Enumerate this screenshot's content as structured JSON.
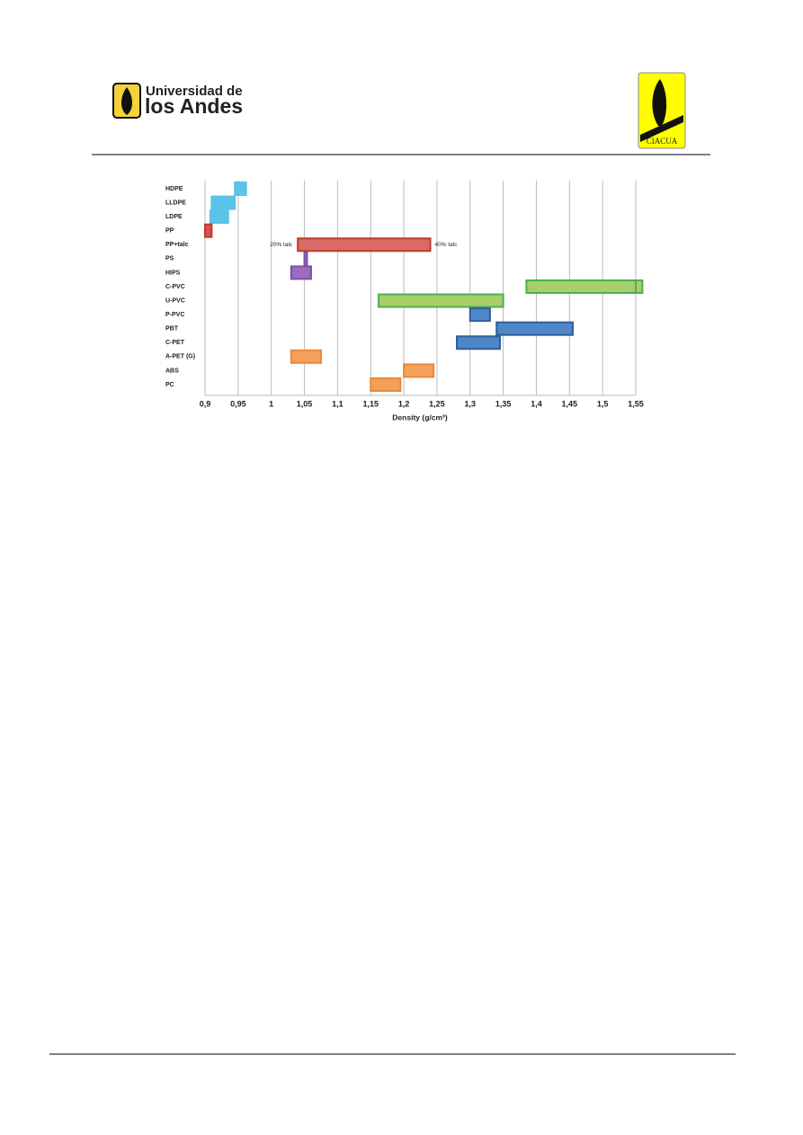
{
  "header": {
    "logo_line1": "Universidad de",
    "logo_line2": "los Andes",
    "right_logo": "CIACUA"
  },
  "chart_data": {
    "type": "range",
    "categories": [
      "HDPE",
      "LLDPE",
      "LDPE",
      "PP",
      "PP+talc",
      "PS",
      "HIPS",
      "C-PVC",
      "U-PVC",
      "P-PVC",
      "PBT",
      "C-PET",
      "A-PET (G)",
      "ABS",
      "PC"
    ],
    "ranges": [
      [
        [
          0.945,
          0.962
        ]
      ],
      [
        [
          0.91,
          0.945
        ]
      ],
      [
        [
          0.908,
          0.935
        ]
      ],
      [
        [
          0.9,
          0.91
        ]
      ],
      [
        [
          1.04,
          1.24
        ]
      ],
      [
        [
          1.05,
          1.054
        ]
      ],
      [
        [
          1.03,
          1.06
        ]
      ],
      [
        [
          1.54,
          1.56
        ],
        [
          1.385,
          1.55
        ]
      ],
      [
        [
          1.162,
          1.35
        ]
      ],
      [
        [
          1.3,
          1.33
        ]
      ],
      [
        [
          1.34,
          1.455
        ]
      ],
      [
        [
          1.28,
          1.345
        ]
      ],
      [
        [
          1.03,
          1.075
        ]
      ],
      [
        [
          1.2,
          1.245
        ]
      ],
      [
        [
          1.15,
          1.195
        ]
      ]
    ],
    "colors": [
      "#5bc3e6",
      "#5bc3e6",
      "#5bc3e6",
      "#d9534f",
      "#d96a66",
      "#9b6cc0",
      "#9b6cc0",
      "#a9cd6c",
      "#a9cd6c",
      "#4f86c6",
      "#4f86c6",
      "#4f86c6",
      "#f5a05a",
      "#f5a05a",
      "#f5a05a"
    ],
    "edge_colors": [
      "#5bc3e6",
      "#5bc3e6",
      "#5bc3e6",
      "#c0392b",
      "#c0392b",
      "#7d4fa8",
      "#7d4fa8",
      "#4cb050",
      "#4cb050",
      "#2e5f99",
      "#2e5f99",
      "#2e5f99",
      "#e98a3a",
      "#e98a3a",
      "#e98a3a"
    ],
    "annotations": [
      "20% talc",
      "40% talc"
    ],
    "xlabel": "Density (g/cm³)",
    "xlim": [
      0.9,
      1.55
    ],
    "xticks": [
      {
        "value": 0.9,
        "label": "0,9"
      },
      {
        "value": 0.95,
        "label": "0,95"
      },
      1,
      {
        "value": 1.05,
        "label": "1,05"
      },
      {
        "value": 1.1,
        "label": "1,1"
      },
      {
        "value": 1.15,
        "label": "1,15"
      },
      {
        "value": 1.2,
        "label": "1,2"
      },
      {
        "value": 1.25,
        "label": "1,25"
      },
      {
        "value": 1.3,
        "label": "1,3"
      },
      {
        "value": 1.35,
        "label": "1,35"
      },
      {
        "value": 1.4,
        "label": "1,4"
      },
      {
        "value": 1.45,
        "label": "1,45"
      },
      {
        "value": 1.5,
        "label": "1,5"
      },
      {
        "value": 1.55,
        "label": "1,55"
      }
    ],
    "grid": true
  }
}
